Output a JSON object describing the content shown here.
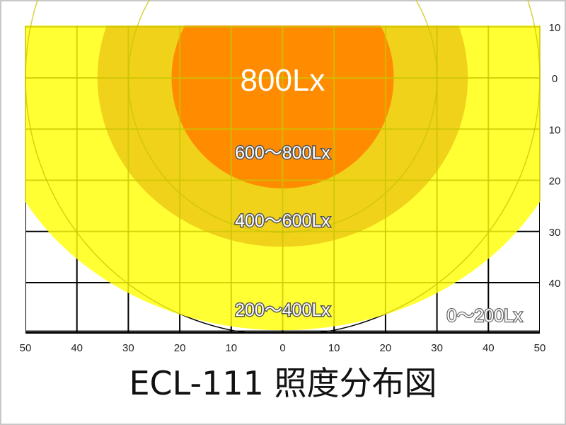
{
  "chart_data": {
    "type": "area",
    "title": "ECL-111 照度分布図",
    "xlim": [
      -50,
      50
    ],
    "ylim": [
      -10,
      49.5
    ],
    "x_ticks": [
      -50,
      -40,
      -30,
      -20,
      -10,
      0,
      10,
      20,
      30,
      40,
      50
    ],
    "x_tick_labels": [
      "50",
      "40",
      "30",
      "20",
      "10",
      "0",
      "10",
      "20",
      "30",
      "40",
      "50"
    ],
    "y_ticks": [
      -10,
      0,
      10,
      20,
      30,
      40
    ],
    "y_tick_labels": [
      "10",
      "0",
      "10",
      "20",
      "30",
      "40"
    ],
    "grid": true,
    "polar_rings": [
      30,
      50
    ],
    "zones": [
      {
        "label": "0〜200Lx",
        "color": "#FFFFFF",
        "rx": null,
        "ry": null
      },
      {
        "label": "200〜400Lx",
        "color": "#FFFF33",
        "rx": 57.4,
        "ry": 49.3
      },
      {
        "label": "400〜600Lx",
        "color": "#F0D21A",
        "rx": 36,
        "ry": 33
      },
      {
        "label": "600〜800Lx",
        "color": "#FF8C00",
        "rx": 21.6,
        "ry": 21.6
      },
      {
        "label": "800Lx",
        "color": "#FF8C00",
        "rx": null,
        "ry": null
      }
    ],
    "colors": {
      "grid_in_zone": "#C8C400",
      "grid_outside": "#000000"
    }
  }
}
